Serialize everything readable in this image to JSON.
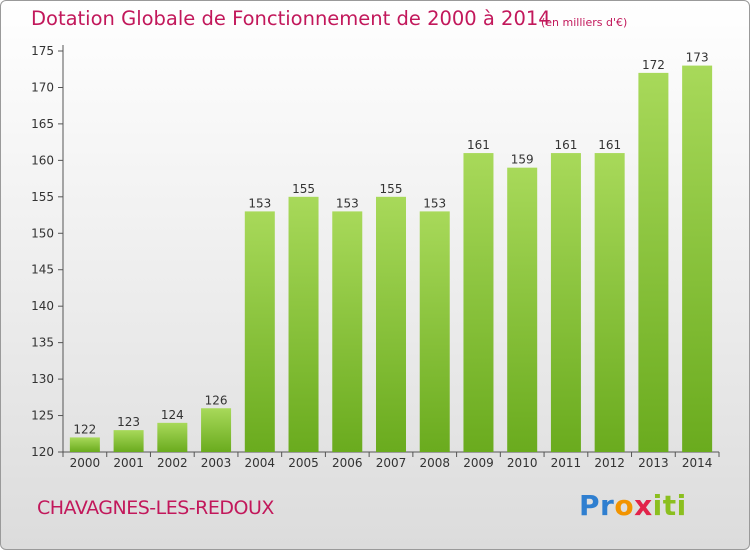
{
  "chart_data": {
    "type": "bar",
    "title": "Dotation Globale de Fonctionnement de 2000 à 2014",
    "unit_note": "(en milliers d'€)",
    "categories": [
      "2000",
      "2001",
      "2002",
      "2003",
      "2004",
      "2005",
      "2006",
      "2007",
      "2008",
      "2009",
      "2010",
      "2011",
      "2012",
      "2013",
      "2014"
    ],
    "values": [
      122,
      123,
      124,
      126,
      153,
      155,
      153,
      155,
      153,
      161,
      159,
      161,
      161,
      172,
      173
    ],
    "ylim": [
      120,
      175
    ],
    "yticks": [
      120,
      125,
      130,
      135,
      140,
      145,
      150,
      155,
      160,
      165,
      170,
      175
    ],
    "grid": false,
    "bar_color": "#76b82a",
    "bar_color_light": "#a8d95a",
    "text_color": "#c2185b"
  },
  "commune": "CHAVAGNES-LES-REDOUX",
  "logo": {
    "letters": [
      "P",
      "r",
      "o",
      "x",
      "i",
      "ti"
    ],
    "colors": [
      "#2f7fd0",
      "#2f7fd0",
      "#f29400",
      "#e2234a",
      "#8bbf1f",
      "#8bbf1f"
    ]
  }
}
